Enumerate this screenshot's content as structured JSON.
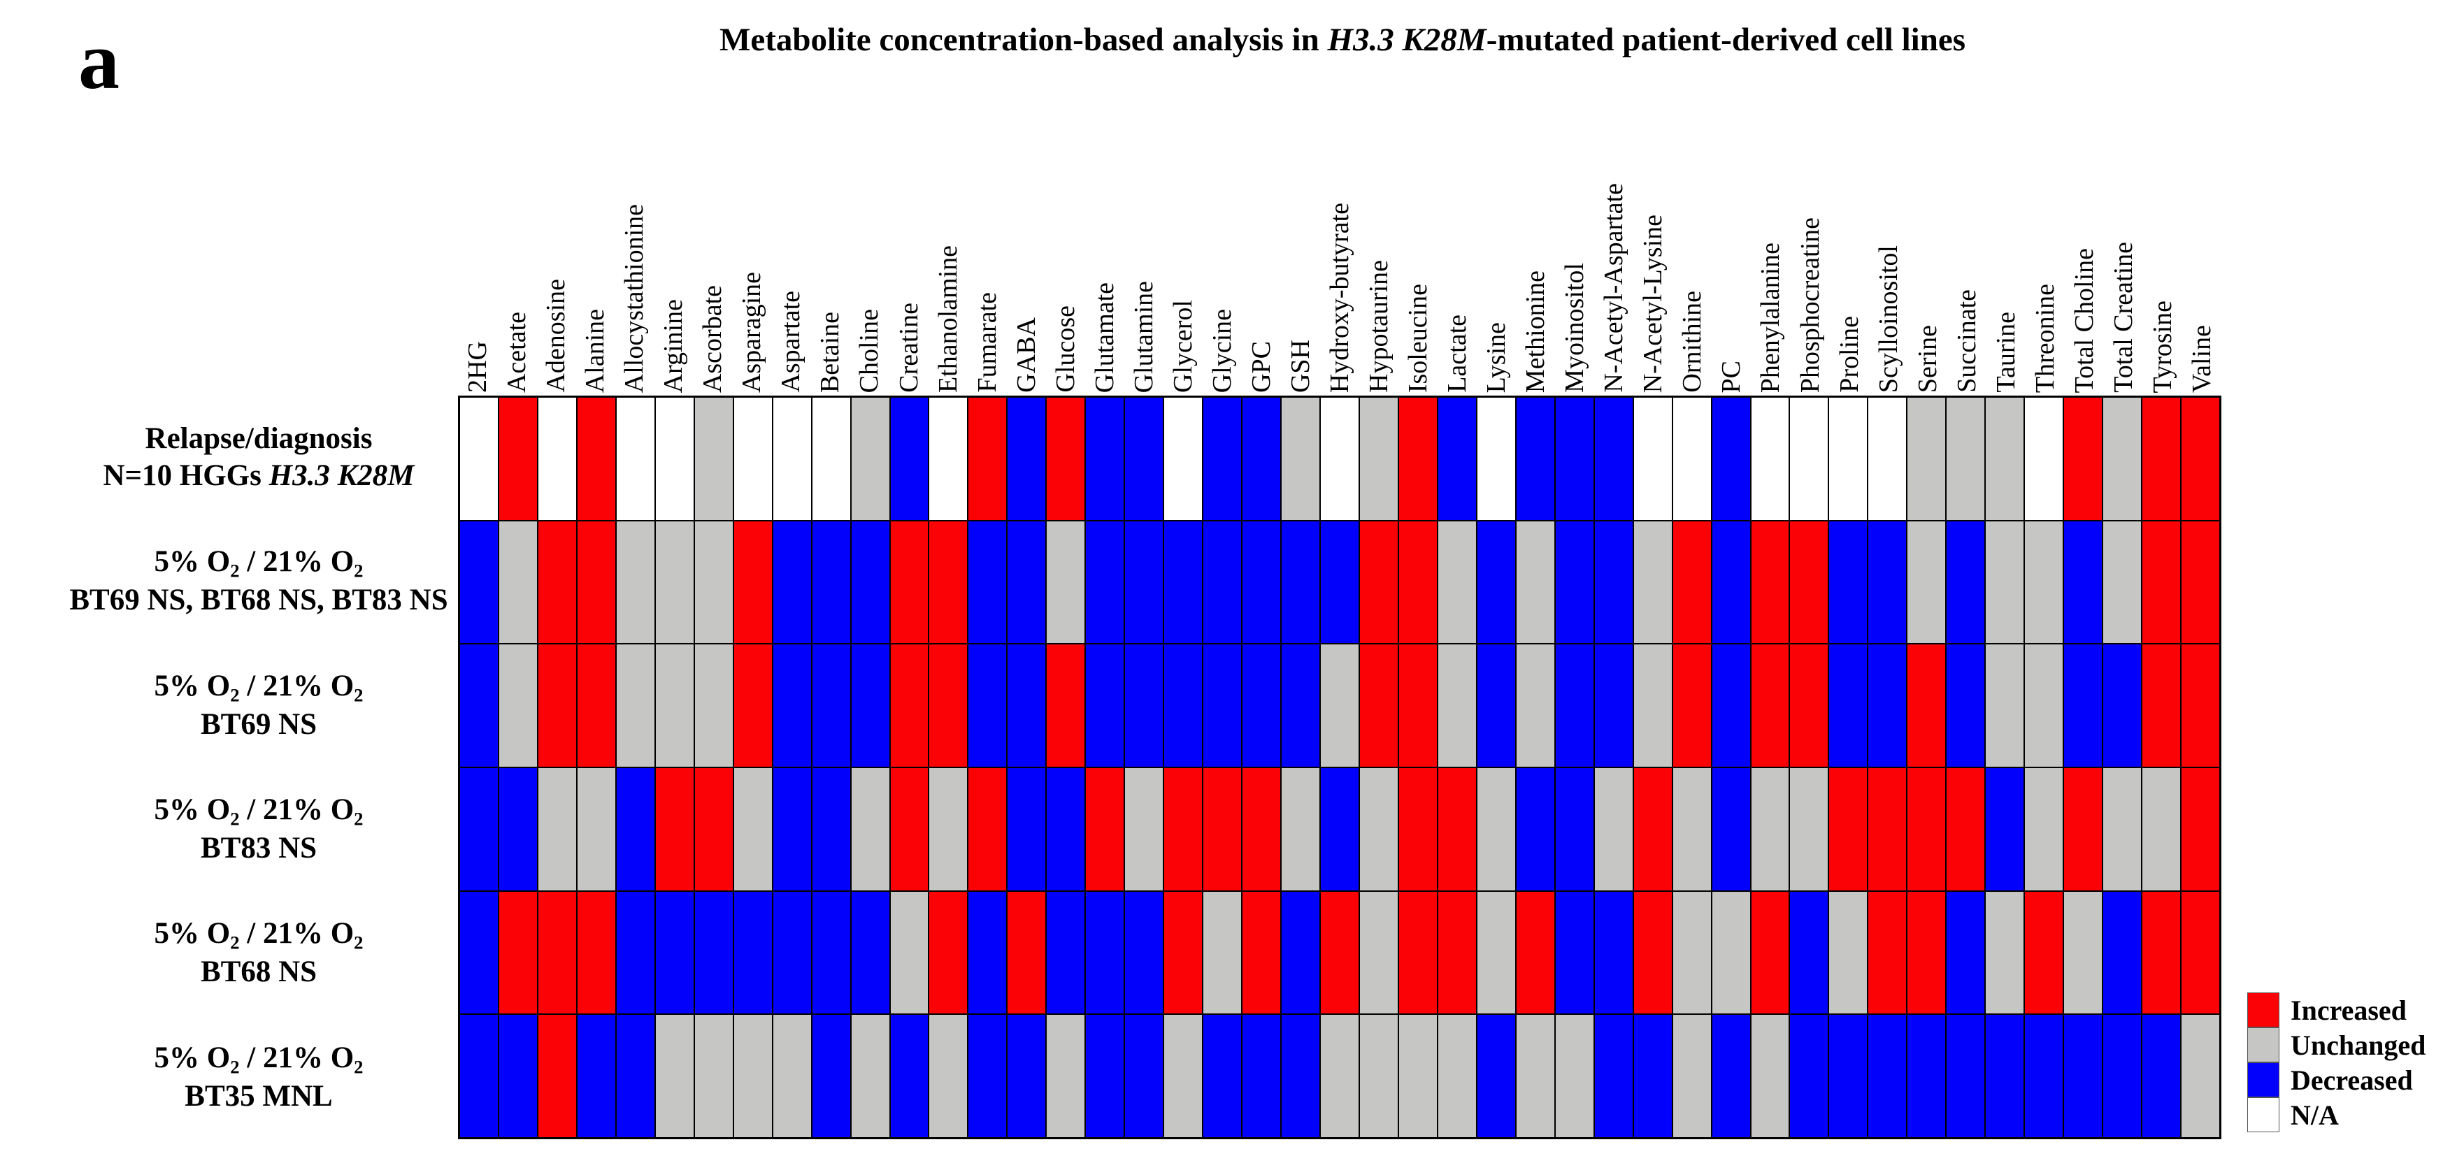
{
  "panel_letter": "a",
  "title_segments": [
    {
      "t": "Metabolite concentration-based analysis in ",
      "s": "r"
    },
    {
      "t": "H3.3 K28M",
      "s": "i"
    },
    {
      "t": "-mutated patient-derived cell lines",
      "s": "r"
    }
  ],
  "colors": {
    "increased": "#fb0207",
    "unchanged": "#c6c7c5",
    "decreased": "#0201fb",
    "na": "#ffffff",
    "border": "#000000"
  },
  "legend_items": [
    {
      "label": "Increased",
      "color_key": "increased"
    },
    {
      "label": "Unchanged",
      "color_key": "unchanged"
    },
    {
      "label": "Decreased",
      "color_key": "decreased"
    },
    {
      "label": "N/A",
      "color_key": "na"
    }
  ],
  "chart_data": {
    "type": "heatmap",
    "title": "Metabolite concentration-based analysis in H3.3 K28M-mutated patient-derived cell lines",
    "code_meaning": {
      "I": "Increased",
      "U": "Unchanged",
      "D": "Decreased",
      "N": "N/A"
    },
    "code_color_key": {
      "I": "increased",
      "U": "unchanged",
      "D": "decreased",
      "N": "na"
    },
    "x_labels": [
      "2HG",
      "Acetate",
      "Adenosine",
      "Alanine",
      "Allocystathionine",
      "Arginine",
      "Ascorbate",
      "Asparagine",
      "Aspartate",
      "Betaine",
      "Choline",
      "Creatine",
      "Ethanolamine",
      "Fumarate",
      "GABA",
      "Glucose",
      "Glutamate",
      "Glutamine",
      "Glycerol",
      "Glycine",
      "GPC",
      "GSH",
      "Hydroxy-butyrate",
      "Hypotaurine",
      "Isoleucine",
      "Lactate",
      "Lysine",
      "Methionine",
      "Myoinositol",
      "N-Acetyl-Aspartate",
      "N-Acetyl-Lysine",
      "Ornithine",
      "PC",
      "Phenylalanine",
      "Phosphocreatine",
      "Proline",
      "Scylloinositol",
      "Serine",
      "Succinate",
      "Taurine",
      "Threonine",
      "Total Choline",
      "Total Creatine",
      "Tyrosine",
      "Valine"
    ],
    "rows": [
      {
        "name": "Relapse/diagnosis N=10 HGGs H3.3 K28M",
        "label_lines": [
          [
            {
              "t": "Relapse/diagnosis",
              "s": "r"
            }
          ],
          [
            {
              "t": "N=10 HGGs ",
              "s": "r"
            },
            {
              "t": "H3.3 K28M",
              "s": "i"
            }
          ]
        ],
        "values": [
          "N",
          "I",
          "N",
          "I",
          "N",
          "N",
          "U",
          "N",
          "N",
          "N",
          "U",
          "D",
          "N",
          "I",
          "D",
          "I",
          "D",
          "D",
          "N",
          "D",
          "D",
          "U",
          "N",
          "U",
          "I",
          "D",
          "N",
          "D",
          "D",
          "D",
          "N",
          "N",
          "D",
          "N",
          "N",
          "N",
          "N",
          "U",
          "U",
          "U",
          "N",
          "I",
          "U",
          "I",
          "I"
        ]
      },
      {
        "name": "5% O2 / 21% O2 BT69 NS, BT68 NS, BT83 NS",
        "label_lines": [
          [
            {
              "t": "5% O",
              "s": "r"
            },
            {
              "t": "2",
              "s": "sub"
            },
            {
              "t": " / 21% O",
              "s": "r"
            },
            {
              "t": "2",
              "s": "sub"
            }
          ],
          [
            {
              "t": "BT69 NS, BT68 NS, BT83 NS",
              "s": "r"
            }
          ]
        ],
        "values": [
          "D",
          "U",
          "I",
          "I",
          "U",
          "U",
          "U",
          "I",
          "D",
          "D",
          "D",
          "I",
          "I",
          "D",
          "D",
          "U",
          "D",
          "D",
          "D",
          "D",
          "D",
          "D",
          "D",
          "I",
          "I",
          "U",
          "D",
          "U",
          "D",
          "D",
          "U",
          "I",
          "D",
          "I",
          "I",
          "D",
          "D",
          "U",
          "D",
          "U",
          "U",
          "D",
          "U",
          "I",
          "I"
        ]
      },
      {
        "name": "5% O2 / 21% O2 BT69 NS",
        "label_lines": [
          [
            {
              "t": "5% O",
              "s": "r"
            },
            {
              "t": "2",
              "s": "sub"
            },
            {
              "t": " / 21% O",
              "s": "r"
            },
            {
              "t": "2",
              "s": "sub"
            }
          ],
          [
            {
              "t": "BT69 NS",
              "s": "r"
            }
          ]
        ],
        "values": [
          "D",
          "U",
          "I",
          "I",
          "U",
          "U",
          "U",
          "I",
          "D",
          "D",
          "D",
          "I",
          "I",
          "D",
          "D",
          "I",
          "D",
          "D",
          "D",
          "D",
          "D",
          "D",
          "U",
          "I",
          "I",
          "U",
          "D",
          "U",
          "D",
          "D",
          "U",
          "I",
          "D",
          "I",
          "I",
          "D",
          "D",
          "I",
          "D",
          "U",
          "U",
          "D",
          "D",
          "I",
          "I"
        ]
      },
      {
        "name": "5% O2 / 21% O2 BT83 NS",
        "label_lines": [
          [
            {
              "t": "5% O",
              "s": "r"
            },
            {
              "t": "2",
              "s": "sub"
            },
            {
              "t": " / 21% O",
              "s": "r"
            },
            {
              "t": "2",
              "s": "sub"
            }
          ],
          [
            {
              "t": "BT83 NS",
              "s": "r"
            }
          ]
        ],
        "values": [
          "D",
          "D",
          "U",
          "U",
          "D",
          "I",
          "I",
          "U",
          "D",
          "D",
          "U",
          "I",
          "U",
          "I",
          "D",
          "D",
          "I",
          "U",
          "I",
          "I",
          "I",
          "U",
          "D",
          "U",
          "I",
          "I",
          "U",
          "D",
          "D",
          "U",
          "I",
          "U",
          "D",
          "U",
          "U",
          "I",
          "I",
          "I",
          "I",
          "D",
          "U",
          "I",
          "U",
          "U",
          "I"
        ]
      },
      {
        "name": "5% O2 / 21% O2 BT68 NS",
        "label_lines": [
          [
            {
              "t": "5% O",
              "s": "r"
            },
            {
              "t": "2",
              "s": "sub"
            },
            {
              "t": " / 21% O",
              "s": "r"
            },
            {
              "t": "2",
              "s": "sub"
            }
          ],
          [
            {
              "t": "BT68 NS",
              "s": "r"
            }
          ]
        ],
        "values": [
          "D",
          "I",
          "I",
          "I",
          "D",
          "D",
          "D",
          "D",
          "D",
          "D",
          "D",
          "U",
          "I",
          "D",
          "I",
          "D",
          "D",
          "D",
          "I",
          "U",
          "I",
          "D",
          "I",
          "U",
          "I",
          "I",
          "U",
          "I",
          "D",
          "D",
          "I",
          "U",
          "U",
          "I",
          "D",
          "U",
          "I",
          "I",
          "D",
          "U",
          "I",
          "U",
          "D",
          "I",
          "I"
        ]
      },
      {
        "name": "5% O2 / 21% O2 BT35 MNL",
        "label_lines": [
          [
            {
              "t": "5% O",
              "s": "r"
            },
            {
              "t": "2",
              "s": "sub"
            },
            {
              "t": " / 21% O",
              "s": "r"
            },
            {
              "t": "2",
              "s": "sub"
            }
          ],
          [
            {
              "t": "BT35 MNL",
              "s": "r"
            }
          ]
        ],
        "values": [
          "D",
          "D",
          "I",
          "D",
          "D",
          "U",
          "U",
          "U",
          "U",
          "D",
          "U",
          "D",
          "U",
          "D",
          "D",
          "U",
          "D",
          "D",
          "U",
          "D",
          "D",
          "D",
          "U",
          "U",
          "U",
          "U",
          "D",
          "U",
          "U",
          "D",
          "D",
          "U",
          "D",
          "U",
          "D",
          "D",
          "D",
          "D",
          "D",
          "D",
          "D",
          "D",
          "D",
          "D",
          "U"
        ]
      }
    ],
    "legend_position": "bottom-right",
    "grid": true
  }
}
